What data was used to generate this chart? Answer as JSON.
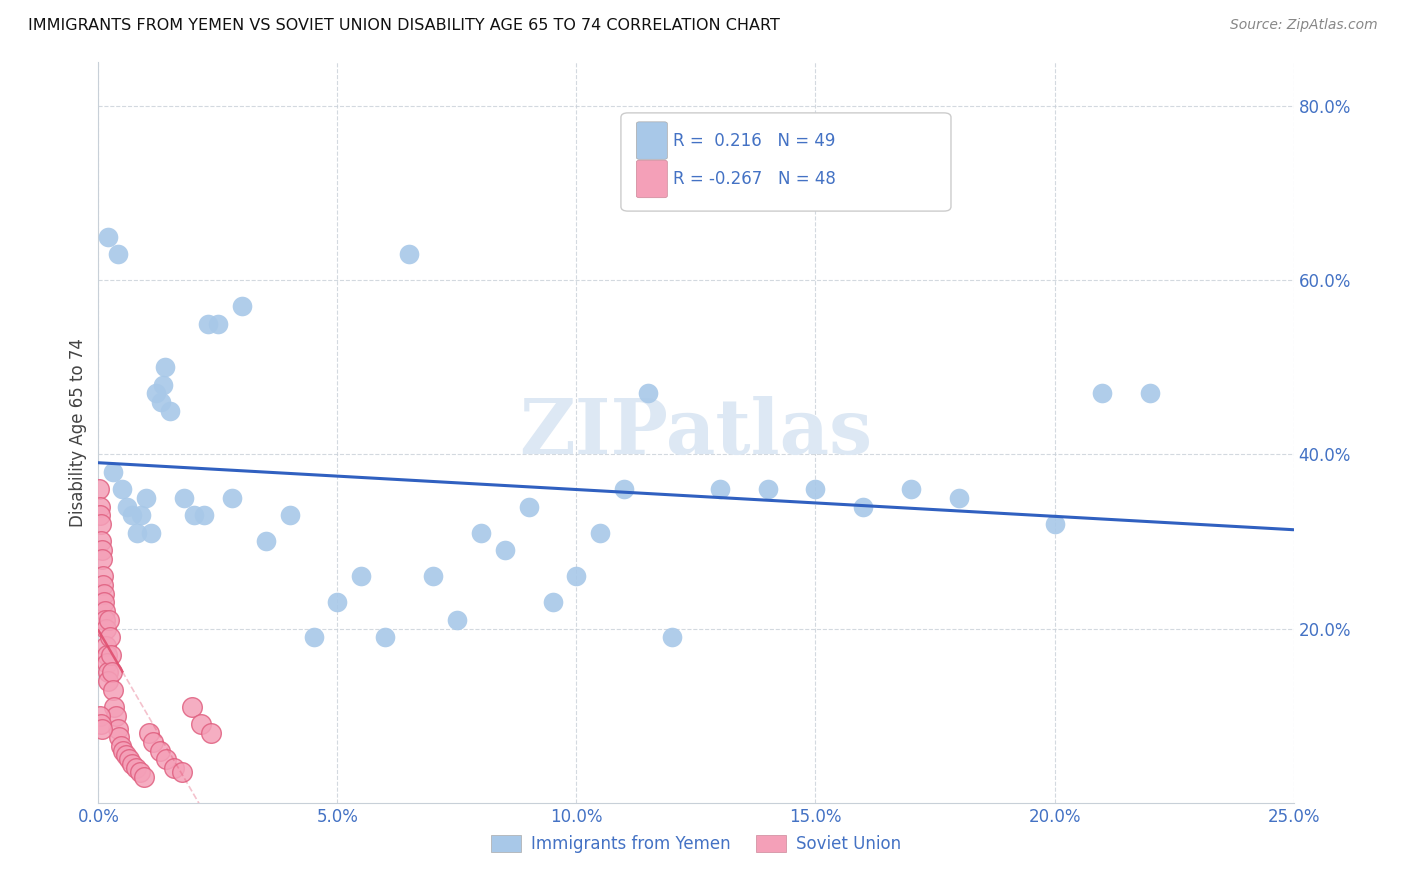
{
  "title": "IMMIGRANTS FROM YEMEN VS SOVIET UNION DISABILITY AGE 65 TO 74 CORRELATION CHART",
  "source": "Source: ZipAtlas.com",
  "ylabel": "Disability Age 65 to 74",
  "xlim": [
    0.0,
    25.0
  ],
  "ylim": [
    0.0,
    85.0
  ],
  "legend_r_yemen": "0.216",
  "legend_n_yemen": "49",
  "legend_r_soviet": "-0.267",
  "legend_n_soviet": "48",
  "yemen_color": "#a8c8e8",
  "soviet_color": "#f4a0b8",
  "soviet_edge_color": "#e06080",
  "yemen_line_color": "#3060c0",
  "soviet_line_color": "#e05070",
  "watermark": "ZIPatlas",
  "yemen_x": [
    0.3,
    0.5,
    0.6,
    0.7,
    0.8,
    0.9,
    1.0,
    1.1,
    1.2,
    1.3,
    1.35,
    1.4,
    1.5,
    1.8,
    2.0,
    2.2,
    2.5,
    2.8,
    3.0,
    3.5,
    4.0,
    4.5,
    5.0,
    5.5,
    6.0,
    6.5,
    7.0,
    7.5,
    8.0,
    8.5,
    9.0,
    9.5,
    10.0,
    10.5,
    11.0,
    11.5,
    12.0,
    13.0,
    14.0,
    15.0,
    16.0,
    17.0,
    18.0,
    20.0,
    21.0,
    22.0,
    0.2,
    0.4,
    2.3
  ],
  "yemen_y": [
    38.0,
    36.0,
    34.0,
    33.0,
    31.0,
    33.0,
    35.0,
    31.0,
    47.0,
    46.0,
    48.0,
    50.0,
    45.0,
    35.0,
    33.0,
    33.0,
    55.0,
    35.0,
    57.0,
    30.0,
    33.0,
    19.0,
    23.0,
    26.0,
    19.0,
    63.0,
    26.0,
    21.0,
    31.0,
    29.0,
    34.0,
    23.0,
    26.0,
    31.0,
    36.0,
    47.0,
    19.0,
    36.0,
    36.0,
    36.0,
    34.0,
    36.0,
    35.0,
    32.0,
    47.0,
    47.0,
    65.0,
    63.0,
    55.0
  ],
  "soviet_x": [
    0.02,
    0.03,
    0.04,
    0.05,
    0.06,
    0.07,
    0.08,
    0.09,
    0.1,
    0.11,
    0.12,
    0.13,
    0.14,
    0.15,
    0.16,
    0.17,
    0.18,
    0.19,
    0.2,
    0.22,
    0.24,
    0.26,
    0.28,
    0.3,
    0.33,
    0.36,
    0.4,
    0.44,
    0.48,
    0.52,
    0.58,
    0.64,
    0.7,
    0.78,
    0.86,
    0.95,
    1.05,
    1.15,
    1.28,
    1.42,
    1.58,
    1.75,
    1.95,
    2.15,
    2.35,
    0.025,
    0.045,
    0.065
  ],
  "soviet_y": [
    36.0,
    34.0,
    33.0,
    32.0,
    30.0,
    29.0,
    28.0,
    26.0,
    25.0,
    24.0,
    23.0,
    22.0,
    21.0,
    20.0,
    18.0,
    17.0,
    16.0,
    15.0,
    14.0,
    21.0,
    19.0,
    17.0,
    15.0,
    13.0,
    11.0,
    10.0,
    8.5,
    7.5,
    6.5,
    6.0,
    5.5,
    5.0,
    4.5,
    4.0,
    3.5,
    3.0,
    8.0,
    7.0,
    6.0,
    5.0,
    4.0,
    3.5,
    11.0,
    9.0,
    8.0,
    10.0,
    9.0,
    8.5
  ]
}
